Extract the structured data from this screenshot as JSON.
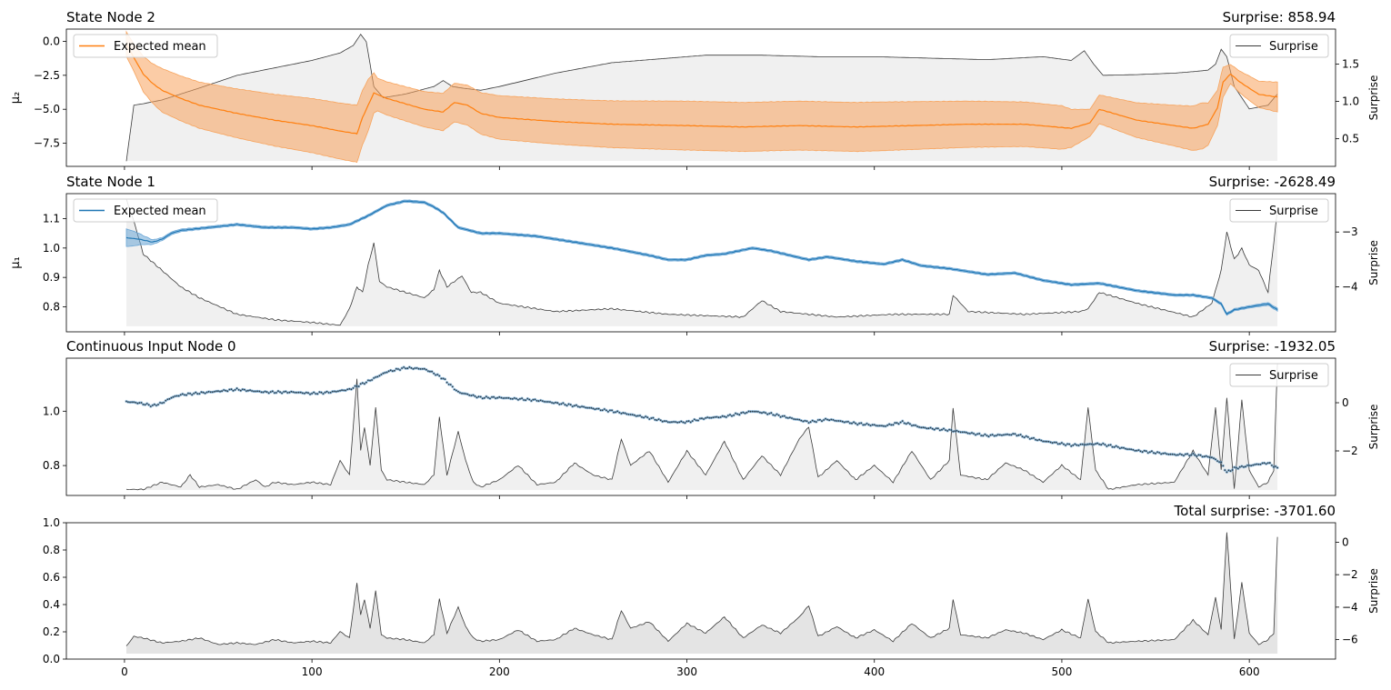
{
  "colors": {
    "orange": "#ff7f0e",
    "orange_band": "#f7a35c",
    "blue": "#1f77b4",
    "blue_band": "#6aa6d6",
    "surprise_line": "#3a3a3a",
    "surprise_fill": "#d9d9d9"
  },
  "chart_data": [
    {
      "type": "line",
      "title": "State Node 2",
      "title_right": "Surprise: 858.94",
      "ylabel": "μ₂",
      "ylabel_right": "Surprise",
      "xlim": [
        -31,
        646
      ],
      "ylim": [
        -9.2,
        0.9
      ],
      "ylim_right": [
        0.13,
        1.97
      ],
      "yticks": [
        0.0,
        -2.5,
        -5.0,
        -7.5
      ],
      "ytick_labels": [
        "0.0",
        "−2.5",
        "−5.0",
        "−7.5"
      ],
      "yticks_right": [
        0.5,
        1.0,
        1.5
      ],
      "ytick_labels_right": [
        "0.5",
        "1.0",
        "1.5"
      ],
      "legend_left": "Expected mean",
      "legend_right": "Surprise",
      "mean": {
        "x": [
          1,
          5,
          10,
          15,
          20,
          30,
          40,
          60,
          80,
          100,
          115,
          124,
          127,
          130,
          133,
          140,
          150,
          160,
          170,
          176,
          183,
          190,
          200,
          230,
          260,
          300,
          330,
          360,
          390,
          420,
          450,
          480,
          505,
          515,
          520,
          540,
          560,
          570,
          578,
          583,
          586,
          590,
          595,
          605,
          615
        ],
        "y": [
          -0.2,
          -1.2,
          -2.4,
          -3.1,
          -3.6,
          -4.2,
          -4.7,
          -5.3,
          -5.8,
          -6.2,
          -6.6,
          -6.8,
          -5.6,
          -4.7,
          -3.8,
          -4.2,
          -4.6,
          -5.0,
          -5.2,
          -4.5,
          -4.7,
          -5.3,
          -5.6,
          -5.9,
          -6.1,
          -6.2,
          -6.3,
          -6.2,
          -6.3,
          -6.2,
          -6.1,
          -6.1,
          -6.4,
          -6.0,
          -5.0,
          -5.8,
          -6.2,
          -6.4,
          -6.1,
          -4.9,
          -3.0,
          -2.4,
          -3.0,
          -3.9,
          -4.1
        ]
      },
      "band_halfwidth": {
        "x": [
          1,
          5,
          10,
          20,
          40,
          80,
          124,
          130,
          135,
          160,
          200,
          300,
          400,
          500,
          515,
          560,
          575,
          585,
          590,
          600,
          615
        ],
        "w": [
          0.9,
          1.0,
          1.3,
          1.6,
          1.7,
          1.9,
          2.1,
          1.9,
          1.2,
          1.3,
          1.6,
          1.8,
          1.8,
          1.6,
          1.0,
          1.5,
          1.7,
          1.2,
          0.7,
          0.9,
          1.1
        ]
      },
      "surprise": {
        "x": [
          1,
          5,
          10,
          20,
          40,
          60,
          80,
          100,
          115,
          122,
          126,
          129,
          133,
          138,
          150,
          165,
          170,
          175,
          180,
          190,
          200,
          230,
          260,
          290,
          310,
          340,
          370,
          400,
          430,
          460,
          490,
          505,
          512,
          517,
          522,
          540,
          560,
          570,
          578,
          582,
          585,
          588,
          592,
          600,
          610,
          615
        ],
        "y": [
          0.2,
          0.95,
          0.97,
          1.02,
          1.18,
          1.35,
          1.45,
          1.55,
          1.65,
          1.75,
          1.9,
          1.8,
          1.2,
          1.05,
          1.1,
          1.2,
          1.28,
          1.2,
          1.18,
          1.15,
          1.2,
          1.38,
          1.52,
          1.58,
          1.62,
          1.62,
          1.6,
          1.6,
          1.58,
          1.56,
          1.6,
          1.55,
          1.68,
          1.5,
          1.35,
          1.36,
          1.38,
          1.4,
          1.42,
          1.5,
          1.7,
          1.6,
          1.2,
          0.9,
          0.95,
          1.1
        ]
      }
    },
    {
      "type": "line",
      "title": "State Node 1",
      "title_right": "Surprise: -2628.49",
      "ylabel": "μ₁",
      "ylabel_right": "Surprise",
      "xlim": [
        -31,
        646
      ],
      "ylim": [
        0.715,
        1.185
      ],
      "ylim_right": [
        -4.82,
        -2.3
      ],
      "yticks": [
        0.8,
        0.9,
        1.0,
        1.1
      ],
      "ytick_labels": [
        "0.8",
        "0.9",
        "1.0",
        "1.1"
      ],
      "yticks_right": [
        -3,
        -4
      ],
      "ytick_labels_right": [
        "−3",
        "−4"
      ],
      "legend_left": "Expected mean",
      "legend_right": "Surprise",
      "mean": {
        "x": [
          1,
          8,
          15,
          20,
          25,
          30,
          45,
          60,
          75,
          90,
          100,
          110,
          120,
          130,
          140,
          150,
          160,
          165,
          170,
          178,
          190,
          200,
          220,
          240,
          260,
          280,
          290,
          300,
          310,
          320,
          335,
          345,
          355,
          365,
          375,
          390,
          405,
          415,
          425,
          440,
          460,
          475,
          490,
          505,
          520,
          540,
          560,
          570,
          580,
          585,
          588,
          592,
          600,
          610,
          615
        ],
        "y": [
          1.035,
          1.03,
          1.02,
          1.03,
          1.05,
          1.06,
          1.07,
          1.08,
          1.07,
          1.07,
          1.065,
          1.07,
          1.08,
          1.11,
          1.145,
          1.16,
          1.155,
          1.14,
          1.12,
          1.07,
          1.05,
          1.05,
          1.04,
          1.02,
          1.0,
          0.975,
          0.96,
          0.96,
          0.975,
          0.98,
          1.0,
          0.99,
          0.975,
          0.96,
          0.97,
          0.955,
          0.945,
          0.96,
          0.94,
          0.93,
          0.91,
          0.915,
          0.89,
          0.875,
          0.88,
          0.855,
          0.84,
          0.84,
          0.83,
          0.81,
          0.775,
          0.79,
          0.8,
          0.81,
          0.79
        ]
      },
      "band_halfwidth": {
        "x": [
          1,
          5,
          10,
          15,
          20,
          40,
          600,
          615
        ],
        "w": [
          0.03,
          0.025,
          0.015,
          0.008,
          0.005,
          0.004,
          0.004,
          0.005
        ]
      },
      "surprise": {
        "x": [
          1,
          5,
          10,
          20,
          30,
          40,
          60,
          80,
          100,
          115,
          120,
          124,
          127,
          130,
          133,
          136,
          140,
          150,
          160,
          165,
          168,
          172,
          180,
          185,
          190,
          200,
          230,
          260,
          290,
          330,
          340,
          350,
          380,
          410,
          440,
          442,
          450,
          480,
          510,
          514,
          520,
          540,
          570,
          580,
          585,
          588,
          592,
          596,
          600,
          605,
          610,
          615
        ],
        "y": [
          -2.4,
          -2.8,
          -3.4,
          -3.7,
          -4.0,
          -4.2,
          -4.5,
          -4.6,
          -4.65,
          -4.7,
          -4.4,
          -4.0,
          -4.1,
          -3.6,
          -3.2,
          -3.9,
          -4.0,
          -4.1,
          -4.2,
          -4.05,
          -3.7,
          -4.0,
          -3.8,
          -4.1,
          -4.1,
          -4.3,
          -4.45,
          -4.4,
          -4.5,
          -4.55,
          -4.25,
          -4.45,
          -4.55,
          -4.5,
          -4.5,
          -4.15,
          -4.45,
          -4.5,
          -4.45,
          -4.4,
          -4.1,
          -4.3,
          -4.55,
          -4.3,
          -3.7,
          -3.0,
          -3.5,
          -3.3,
          -3.6,
          -3.7,
          -4.1,
          -2.6
        ]
      }
    },
    {
      "type": "scatter",
      "title": "Continuous Input Node 0",
      "title_right": "Surprise: -1932.05",
      "ylabel": "",
      "ylabel_right": "Surprise",
      "xlim": [
        -31,
        646
      ],
      "ylim": [
        0.69,
        1.195
      ],
      "ylim_right": [
        -3.85,
        1.85
      ],
      "yticks": [
        0.8,
        1.0
      ],
      "ytick_labels": [
        "0.8",
        "1.0"
      ],
      "yticks_right": [
        0,
        -2
      ],
      "ytick_labels_right": [
        "0",
        "−2"
      ],
      "legend_right": "Surprise",
      "observations_follow": "State Node 1 expected mean",
      "surprise": {
        "x": [
          1,
          10,
          20,
          30,
          35,
          40,
          50,
          60,
          70,
          75,
          80,
          90,
          100,
          110,
          115,
          120,
          124,
          126,
          128,
          131,
          134,
          137,
          140,
          150,
          160,
          165,
          168,
          172,
          178,
          182,
          186,
          190,
          200,
          210,
          220,
          230,
          240,
          250,
          260,
          265,
          270,
          280,
          290,
          300,
          310,
          320,
          330,
          340,
          350,
          360,
          365,
          370,
          380,
          390,
          400,
          410,
          420,
          430,
          440,
          442,
          446,
          460,
          470,
          480,
          490,
          500,
          510,
          514,
          518,
          525,
          540,
          560,
          570,
          578,
          582,
          585,
          588,
          592,
          596,
          600,
          605,
          610,
          613,
          615
        ],
        "y": [
          -3.6,
          -3.6,
          -3.3,
          -3.5,
          -3.0,
          -3.5,
          -3.4,
          -3.6,
          -3.2,
          -3.5,
          -3.3,
          -3.4,
          -3.3,
          -3.4,
          -2.4,
          -3.0,
          1.0,
          -2.0,
          -1.0,
          -2.6,
          -0.2,
          -2.8,
          -3.2,
          -3.3,
          -3.4,
          -3.0,
          -0.6,
          -3.0,
          -1.2,
          -2.4,
          -3.3,
          -3.5,
          -3.2,
          -2.6,
          -3.4,
          -3.3,
          -2.5,
          -3.0,
          -3.2,
          -1.5,
          -2.6,
          -2.0,
          -3.3,
          -2.0,
          -3.0,
          -1.6,
          -3.2,
          -2.2,
          -3.0,
          -1.5,
          -1.0,
          -3.1,
          -2.4,
          -3.2,
          -2.6,
          -3.3,
          -2.0,
          -3.2,
          -2.4,
          -0.2,
          -3.0,
          -3.2,
          -2.5,
          -2.8,
          -3.3,
          -2.6,
          -3.2,
          -0.2,
          -2.8,
          -3.6,
          -3.4,
          -3.3,
          -2.0,
          -3.0,
          -0.2,
          -2.8,
          0.2,
          -3.6,
          0.1,
          -2.8,
          -3.5,
          -3.3,
          -2.8,
          1.6
        ]
      }
    },
    {
      "type": "area",
      "title": "",
      "title_right": "Total surprise: -3701.60",
      "ylabel": "",
      "ylabel_right": "Surprise",
      "xlim": [
        -31,
        646
      ],
      "ylim": [
        0,
        1
      ],
      "ylim_right": [
        -7.2,
        1.2
      ],
      "yticks": [
        0.0,
        0.2,
        0.4,
        0.6,
        0.8,
        1.0
      ],
      "ytick_labels": [
        "0.0",
        "0.2",
        "0.4",
        "0.6",
        "0.8",
        "1.0"
      ],
      "yticks_right": [
        0,
        -2,
        -4,
        -6
      ],
      "ytick_labels_right": [
        "0",
        "−2",
        "−4",
        "−6"
      ],
      "xticks": [
        0,
        100,
        200,
        300,
        400,
        500,
        600
      ],
      "xtick_labels": [
        "0",
        "100",
        "200",
        "300",
        "400",
        "500",
        "600"
      ],
      "surprise": {
        "x": [
          1,
          5,
          10,
          20,
          30,
          40,
          50,
          60,
          70,
          80,
          90,
          100,
          110,
          115,
          120,
          124,
          126,
          128,
          131,
          134,
          137,
          140,
          150,
          160,
          165,
          168,
          172,
          178,
          182,
          186,
          190,
          200,
          210,
          220,
          230,
          240,
          250,
          260,
          265,
          270,
          280,
          290,
          300,
          310,
          320,
          330,
          340,
          350,
          360,
          365,
          370,
          380,
          390,
          400,
          410,
          420,
          430,
          440,
          442,
          446,
          460,
          470,
          480,
          490,
          500,
          510,
          514,
          518,
          525,
          540,
          560,
          570,
          578,
          582,
          585,
          588,
          592,
          596,
          600,
          605,
          610,
          613,
          615
        ],
        "y": [
          -6.4,
          -5.8,
          -5.9,
          -6.2,
          -6.1,
          -5.9,
          -6.3,
          -6.2,
          -6.3,
          -6.0,
          -6.2,
          -6.1,
          -6.2,
          -5.5,
          -5.9,
          -2.5,
          -4.5,
          -3.5,
          -5.3,
          -3.0,
          -5.7,
          -5.9,
          -6.0,
          -6.2,
          -5.7,
          -3.5,
          -5.6,
          -4.0,
          -5.2,
          -5.9,
          -6.1,
          -6.0,
          -5.4,
          -6.1,
          -6.0,
          -5.3,
          -5.7,
          -6.0,
          -4.2,
          -5.3,
          -4.9,
          -6.1,
          -5.0,
          -5.6,
          -4.6,
          -5.9,
          -5.1,
          -5.6,
          -4.6,
          -3.9,
          -5.8,
          -5.2,
          -5.9,
          -5.4,
          -6.1,
          -5.0,
          -5.9,
          -5.3,
          -3.5,
          -5.7,
          -5.9,
          -5.4,
          -5.6,
          -6.0,
          -5.4,
          -5.9,
          -3.5,
          -5.5,
          -6.2,
          -6.1,
          -6.0,
          -4.8,
          -5.7,
          -3.4,
          -5.4,
          0.6,
          -6.0,
          -2.5,
          -5.6,
          -6.3,
          -6.0,
          -5.6,
          0.3
        ]
      }
    }
  ]
}
